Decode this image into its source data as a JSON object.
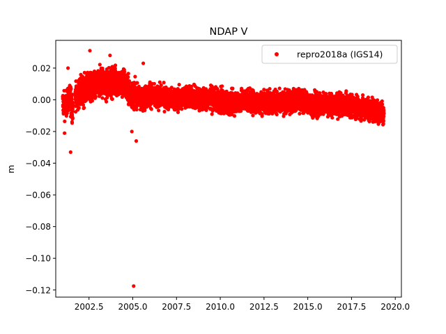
{
  "chart_data": {
    "type": "scatter",
    "title": "NDAP V",
    "xlabel": "",
    "ylabel": "m",
    "xlim": [
      2000.6,
      2020.35
    ],
    "ylim": [
      -0.1245,
      0.0375
    ],
    "xticks": [
      2002.5,
      2005.0,
      2007.5,
      2010.0,
      2012.5,
      2015.0,
      2017.5,
      2020.0
    ],
    "xtick_labels": [
      "2002.5",
      "2005.0",
      "2007.5",
      "2010.0",
      "2012.5",
      "2015.0",
      "2017.5",
      "2020.0"
    ],
    "yticks": [
      -0.12,
      -0.1,
      -0.08,
      -0.06,
      -0.04,
      -0.02,
      0.0,
      0.02
    ],
    "ytick_labels": [
      "−0.12",
      "−0.10",
      "−0.08",
      "−0.06",
      "−0.04",
      "−0.02",
      "0.00",
      "0.02"
    ],
    "grid": false,
    "legend_position": "top-right",
    "series": [
      {
        "name": "repro2018a (IGS14)",
        "color": "#ff0000",
        "marker": "circle",
        "x": [
          2001.0,
          2001.15,
          2001.3,
          2001.45,
          2001.55,
          2001.65,
          2001.8,
          2002.0,
          2002.3,
          2002.5,
          2002.8,
          2003.0,
          2003.2,
          2003.5,
          2003.7,
          2004.0,
          2004.3,
          2004.5,
          2004.7,
          2004.95,
          2005.1,
          2005.3,
          2005.6,
          2006.0,
          2006.3,
          2006.6,
          2007.0,
          2007.5,
          2008.0,
          2008.5,
          2009.0,
          2009.5,
          2010.0,
          2010.5,
          2011.0,
          2011.5,
          2012.0,
          2012.5,
          2013.0,
          2013.5,
          2014.0,
          2014.5,
          2015.0,
          2015.5,
          2016.0,
          2016.5,
          2017.0,
          2017.5,
          2018.0,
          2018.5,
          2019.0,
          2019.35
        ],
        "y": [
          -0.002,
          -0.004,
          0.0,
          0.001,
          -0.006,
          0.003,
          0.002,
          0.005,
          0.006,
          0.008,
          0.007,
          0.01,
          0.012,
          0.009,
          0.011,
          0.012,
          0.01,
          0.011,
          0.006,
          0.003,
          0.004,
          0.002,
          0.0,
          0.004,
          0.001,
          0.002,
          0.001,
          0.0,
          0.002,
          0.001,
          0.0,
          0.001,
          -0.001,
          -0.002,
          -0.001,
          0.0,
          -0.002,
          -0.001,
          -0.001,
          -0.002,
          -0.001,
          0.0,
          -0.002,
          -0.003,
          -0.002,
          -0.004,
          -0.003,
          -0.004,
          -0.005,
          -0.006,
          -0.007,
          -0.008
        ],
        "spread": [
          0.007,
          0.007,
          0.006,
          0.008,
          0.008,
          0.007,
          0.007,
          0.008,
          0.008,
          0.008,
          0.008,
          0.008,
          0.008,
          0.008,
          0.008,
          0.008,
          0.008,
          0.008,
          0.008,
          0.007,
          0.007,
          0.006,
          0.006,
          0.007,
          0.006,
          0.006,
          0.006,
          0.006,
          0.006,
          0.006,
          0.006,
          0.006,
          0.006,
          0.006,
          0.006,
          0.006,
          0.006,
          0.006,
          0.006,
          0.006,
          0.006,
          0.006,
          0.006,
          0.006,
          0.006,
          0.006,
          0.006,
          0.006,
          0.006,
          0.006,
          0.006,
          0.006
        ],
        "outliers": [
          {
            "x": 2001.45,
            "y": -0.033
          },
          {
            "x": 2001.3,
            "y": 0.02
          },
          {
            "x": 2002.55,
            "y": 0.031
          },
          {
            "x": 2003.7,
            "y": 0.028
          },
          {
            "x": 2004.95,
            "y": -0.02
          },
          {
            "x": 2005.2,
            "y": -0.026
          },
          {
            "x": 2005.05,
            "y": -0.1175
          },
          {
            "x": 2005.6,
            "y": 0.023
          },
          {
            "x": 2001.1,
            "y": -0.021
          }
        ]
      }
    ]
  }
}
